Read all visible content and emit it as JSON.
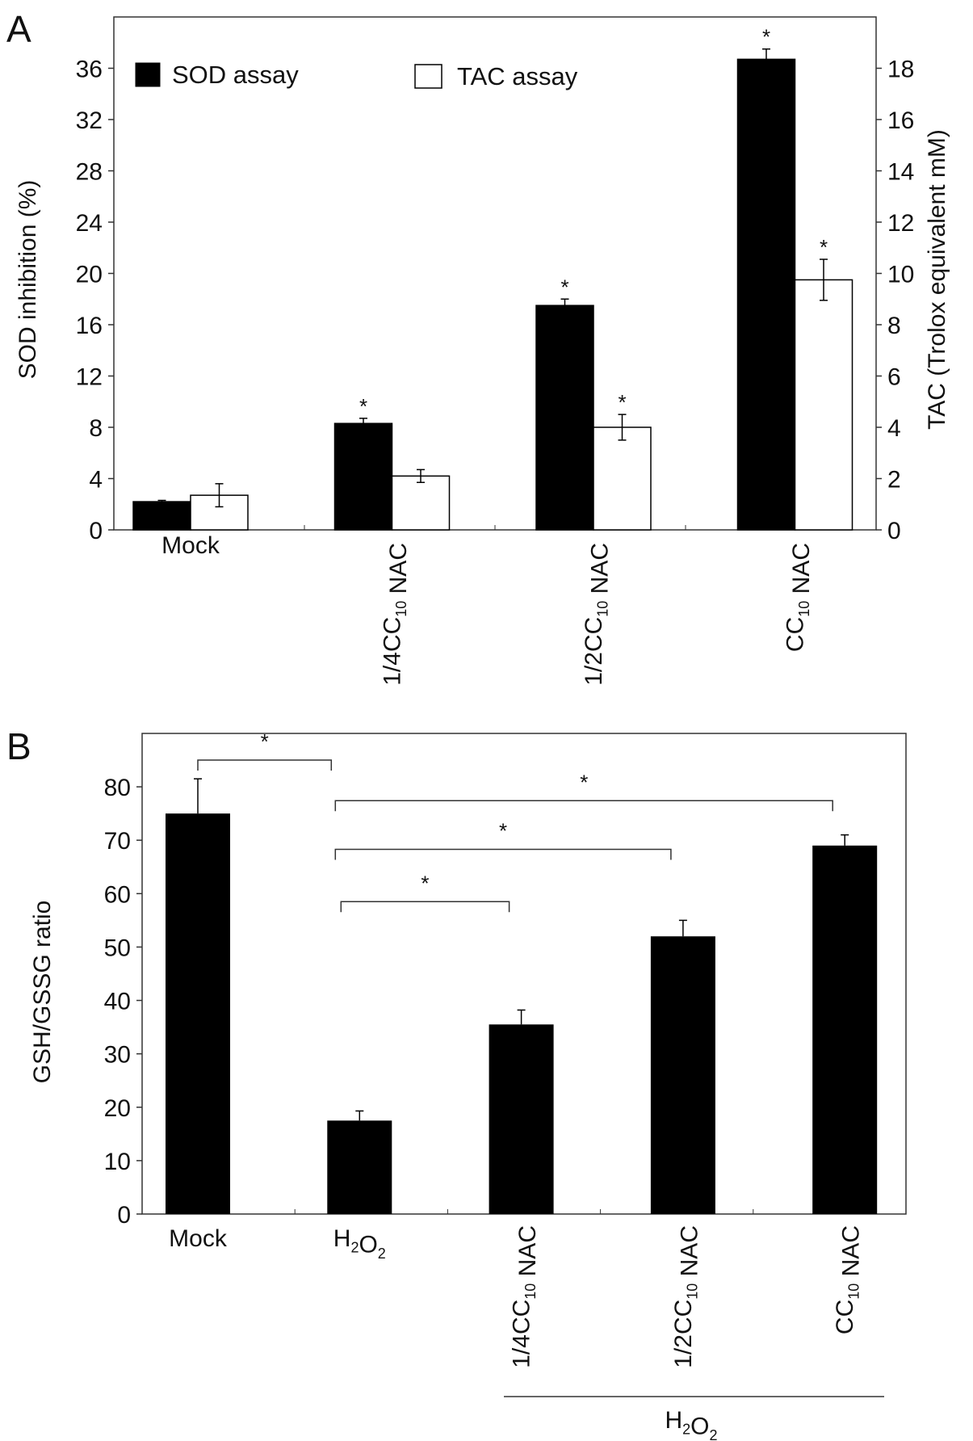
{
  "chart_data": [
    {
      "type": "bar",
      "panel_label": "A",
      "categories": [
        {
          "pre": "Mock",
          "sub": "",
          "post": ""
        },
        {
          "pre": "1/4CC",
          "sub": "10",
          "post": " NAC"
        },
        {
          "pre": "1/2CC",
          "sub": "10",
          "post": " NAC"
        },
        {
          "pre": "CC",
          "sub": "10",
          "post": " NAC"
        }
      ],
      "series": [
        {
          "name": "SOD assay",
          "axis": "left",
          "color": "#000000",
          "values": [
            2.2,
            8.3,
            17.5,
            36.7
          ],
          "errors": [
            0.1,
            0.4,
            0.5,
            0.8
          ],
          "significant": [
            false,
            true,
            true,
            true
          ]
        },
        {
          "name": "TAC assay",
          "axis": "right",
          "color": "#ffffff",
          "values": [
            1.35,
            2.1,
            4.0,
            9.75
          ],
          "errors": [
            0.45,
            0.25,
            0.5,
            0.8
          ],
          "significant": [
            false,
            false,
            true,
            true
          ]
        }
      ],
      "ylabel": "SOD inhibition (%)",
      "ylabel_right": "TAC (Trolox equivalent mM)",
      "ylim": [
        0,
        40
      ],
      "ylim_right": [
        0,
        20
      ],
      "yticks": [
        0,
        4,
        8,
        12,
        16,
        20,
        24,
        28,
        32,
        36
      ],
      "yticks_right": [
        0,
        2,
        4,
        6,
        8,
        10,
        12,
        14,
        16,
        18
      ],
      "legend_position": "top-left",
      "significance_marker": "*"
    },
    {
      "type": "bar",
      "panel_label": "B",
      "categories": [
        {
          "pre": "Mock",
          "sub": "",
          "post": ""
        },
        {
          "pre": "H",
          "sub": "2",
          "post": "O",
          "sub2": "2"
        },
        {
          "pre": "1/4CC",
          "sub": "10",
          "post": " NAC"
        },
        {
          "pre": "1/2CC",
          "sub": "10",
          "post": " NAC"
        },
        {
          "pre": "CC",
          "sub": "10",
          "post": " NAC"
        }
      ],
      "series": [
        {
          "name": "GSH/GSSG ratio",
          "color": "#000000",
          "values": [
            75,
            17.5,
            35.5,
            52,
            69
          ],
          "errors": [
            6.5,
            1.8,
            2.7,
            3,
            2
          ]
        }
      ],
      "ylabel": "GSH/GSSG ratio",
      "ylim": [
        0,
        90
      ],
      "yticks": [
        0,
        10,
        20,
        30,
        40,
        50,
        60,
        70,
        80
      ],
      "comparisons": [
        {
          "from": 0,
          "to": 1,
          "level": 85,
          "marker": "*"
        },
        {
          "from": 1,
          "to": 4,
          "level": 77.4,
          "marker": "*"
        },
        {
          "from": 1,
          "to": 3,
          "level": 68.3,
          "marker": "*"
        },
        {
          "from": 1,
          "to": 2,
          "level": 58.5,
          "marker": "*"
        }
      ],
      "group_label": {
        "pre": "H",
        "sub": "2",
        "post": "O",
        "sub2": "2",
        "spans": [
          2,
          4
        ]
      }
    }
  ]
}
